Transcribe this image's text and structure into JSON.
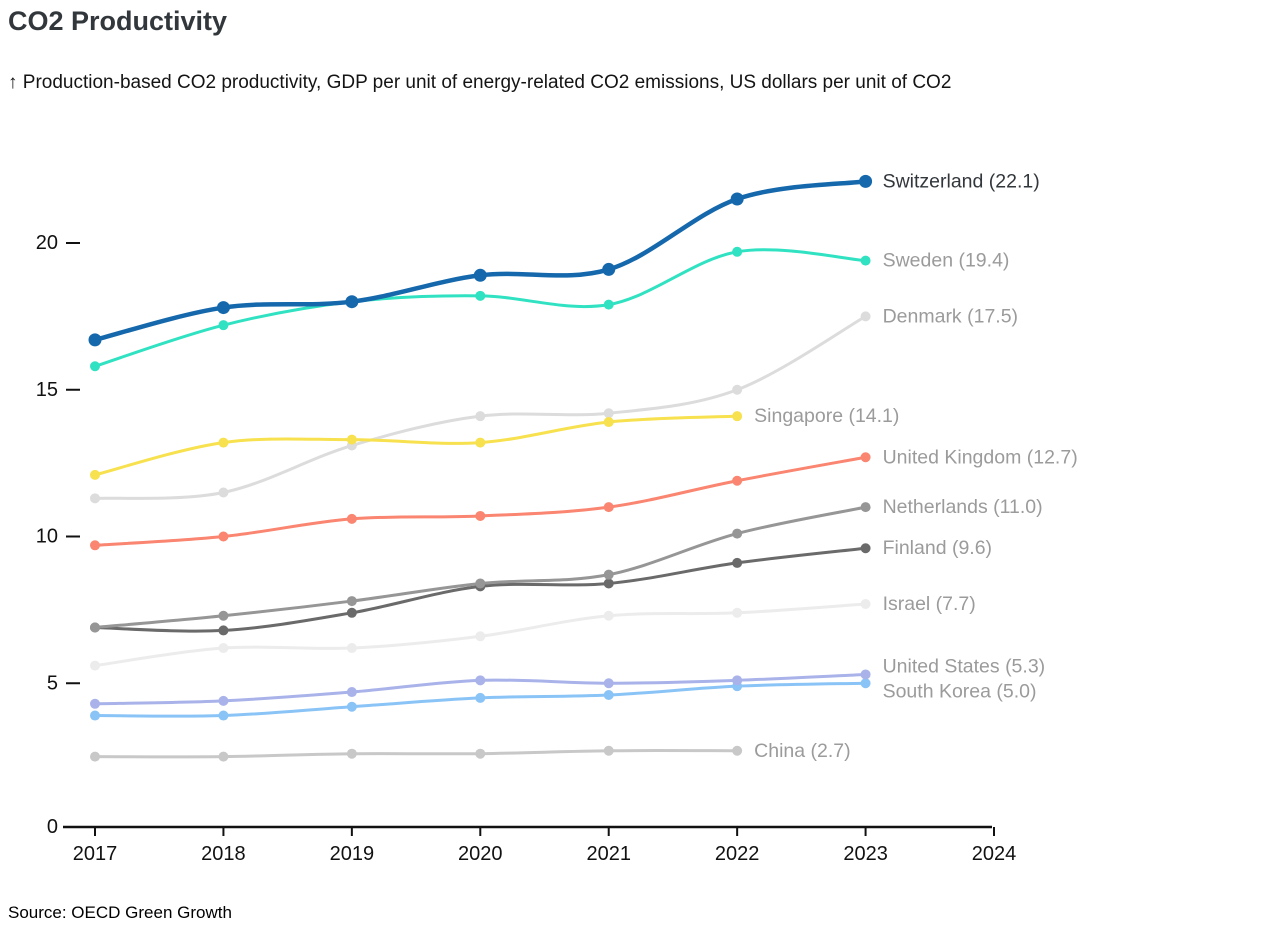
{
  "header": {
    "title": "CO2 Productivity",
    "subtitle": "↑ Production-based CO2 productivity, GDP per unit of energy-related CO2 emissions, US dollars per unit of CO2"
  },
  "footer": {
    "source": "Source: OECD Green Growth"
  },
  "chart_data": {
    "type": "line",
    "title": "CO2 Productivity",
    "subtitle": "↑ Production-based CO2 productivity, GDP per unit of energy-related CO2 emissions, US dollars per unit of CO2",
    "source": "Source: OECD Green Growth",
    "x": [
      2017,
      2018,
      2019,
      2020,
      2021,
      2022,
      2023
    ],
    "x_axis_tick_labels": [
      "2017",
      "2018",
      "2019",
      "2020",
      "2021",
      "2022",
      "2023",
      "2024"
    ],
    "y_ticks": [
      0,
      5,
      10,
      15,
      20
    ],
    "ylim": [
      0,
      23
    ],
    "grid": false,
    "legend_position": "right-end-labels",
    "axis_color": "#111111",
    "label_color_default": "#9b9b9b",
    "series": [
      {
        "name": "Switzerland",
        "label": "Switzerland (22.1)",
        "color": "#1568ac",
        "label_color": "#32373c",
        "emphasis": true,
        "z": 11,
        "values": [
          16.7,
          17.8,
          18.0,
          18.9,
          19.1,
          21.5,
          22.1
        ]
      },
      {
        "name": "Sweden",
        "label": "Sweden (19.4)",
        "color": "#30e2c2",
        "emphasis": false,
        "z": 10,
        "values": [
          15.8,
          17.2,
          18.0,
          18.2,
          17.9,
          19.7,
          19.4
        ]
      },
      {
        "name": "Denmark",
        "label": "Denmark (17.5)",
        "color": "#dcdcdc",
        "emphasis": false,
        "z": 3,
        "values": [
          11.3,
          11.5,
          13.1,
          14.1,
          14.2,
          15.0,
          17.5
        ]
      },
      {
        "name": "Singapore",
        "label": "Singapore (14.1)",
        "color": "#f7e14e",
        "emphasis": false,
        "z": 9,
        "values": [
          12.1,
          13.2,
          13.3,
          13.2,
          13.9,
          14.1,
          null
        ]
      },
      {
        "name": "United Kingdom",
        "label": "United Kingdom (12.7)",
        "color": "#fa8570",
        "emphasis": false,
        "z": 8,
        "values": [
          9.7,
          10.0,
          10.6,
          10.7,
          11.0,
          11.9,
          12.7
        ]
      },
      {
        "name": "Netherlands",
        "label": "Netherlands (11.0)",
        "color": "#969696",
        "emphasis": false,
        "z": 7,
        "values": [
          6.9,
          7.3,
          7.8,
          8.4,
          8.7,
          10.1,
          11.0
        ]
      },
      {
        "name": "Finland",
        "label": "Finland (9.6)",
        "color": "#6a6a6a",
        "emphasis": false,
        "z": 6,
        "values": [
          6.9,
          6.8,
          7.4,
          8.3,
          8.4,
          9.1,
          9.6
        ]
      },
      {
        "name": "Israel",
        "label": "Israel (7.7)",
        "color": "#ececec",
        "emphasis": false,
        "z": 1,
        "values": [
          5.6,
          6.2,
          6.2,
          6.6,
          7.3,
          7.4,
          7.7
        ]
      },
      {
        "name": "United States",
        "label": "United States (5.3)",
        "color": "#a9b3ea",
        "emphasis": false,
        "z": 5,
        "values": [
          4.3,
          4.4,
          4.7,
          5.1,
          5.0,
          5.1,
          5.3
        ]
      },
      {
        "name": "South Korea",
        "label": "South Korea (5.0)",
        "color": "#8ac4f7",
        "emphasis": false,
        "z": 4,
        "values": [
          3.9,
          3.9,
          4.2,
          4.5,
          4.6,
          4.9,
          5.0
        ]
      },
      {
        "name": "China",
        "label": "China (2.7)",
        "color": "#c8c8c8",
        "emphasis": false,
        "z": 2,
        "values": [
          2.5,
          2.5,
          2.6,
          2.6,
          2.7,
          2.7,
          null
        ]
      }
    ]
  }
}
